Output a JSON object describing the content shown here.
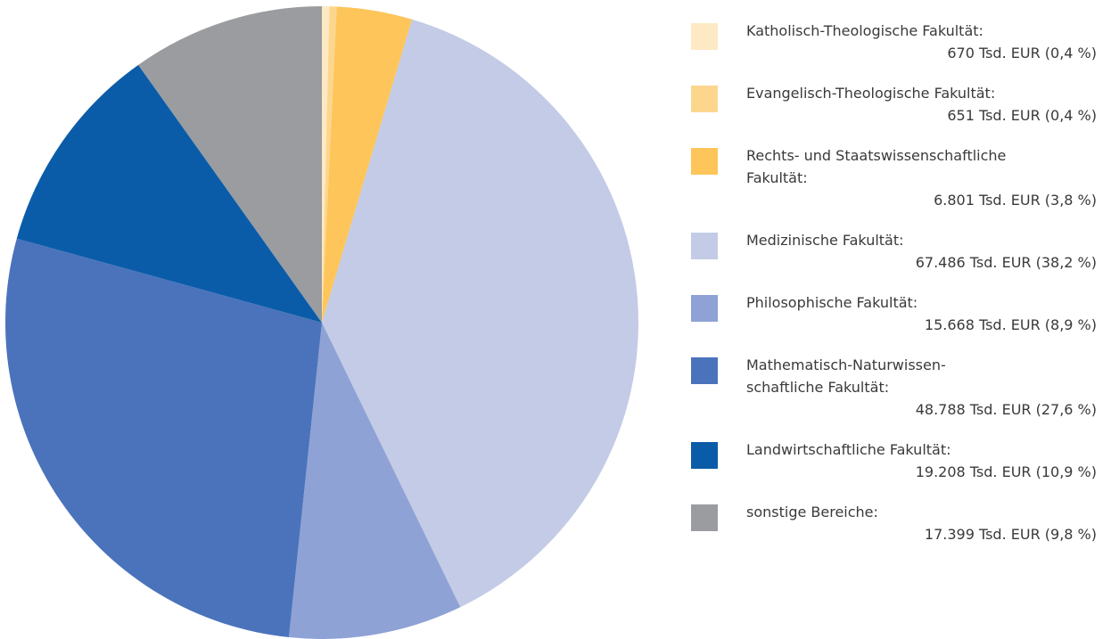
{
  "chart_data": {
    "type": "pie",
    "labels": [
      "Katholisch-Theologische Fakultät:",
      "Evangelisch-Theologische Fakultät:",
      "Rechts- und Staatswissenschaftliche\nFakultät:",
      "Medizinische Fakultät:",
      "Philosophische Fakultät:",
      "Mathematisch-Naturwissen-\nschaftliche Fakultät:",
      "Landwirtschaftliche Fakultät:",
      "sonstige Bereiche:"
    ],
    "values": [
      670,
      651,
      6801,
      67486,
      15668,
      48788,
      19208,
      17399
    ],
    "value_labels": [
      "670 Tsd. EUR (0,4 %)",
      "651 Tsd. EUR (0,4 %)",
      "6.801 Tsd. EUR (3,8 %)",
      "67.486 Tsd. EUR (38,2 %)",
      "15.668 Tsd. EUR (8,9 %)",
      "48.788 Tsd. EUR (27,6 %)",
      "19.208 Tsd. EUR (10,9 %)",
      "17.399 Tsd. EUR (9,8 %)"
    ],
    "colors": [
      "#fde9c4",
      "#fdd68e",
      "#fdc55a",
      "#c3cbe6",
      "#8fa2d5",
      "#4a73bb",
      "#0b5ca8",
      "#9a9ca0"
    ]
  }
}
